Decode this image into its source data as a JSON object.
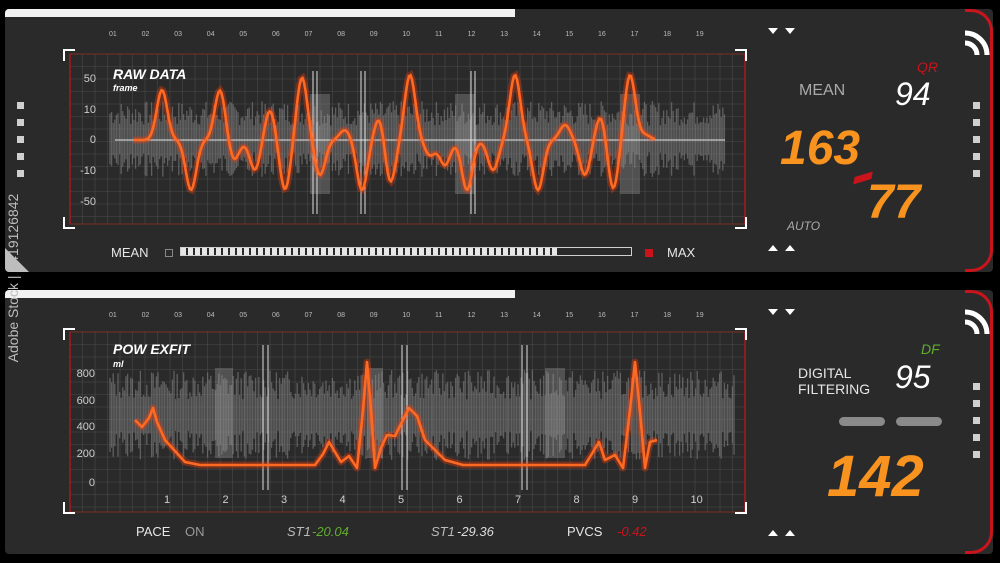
{
  "top_ticks": [
    "01",
    "02",
    "03",
    "04",
    "05",
    "06",
    "07",
    "08",
    "09",
    "10",
    "11",
    "12",
    "13",
    "14",
    "15",
    "16",
    "17",
    "18",
    "19"
  ],
  "panel1": {
    "title": "RAW DATA",
    "subtitle": "frame",
    "y_labels": [
      "50",
      "10",
      "0",
      "-10",
      "-50"
    ],
    "mean_label": "MEAN",
    "max_label": "MAX",
    "mean_bar_fill": 0.84,
    "right": {
      "mean_label": "MEAN",
      "qr_label": "QR",
      "qr_value": "94",
      "systolic": "163",
      "diastolic": "77",
      "auto_label": "AUTO"
    }
  },
  "panel2": {
    "title": "POW EXFIT",
    "subtitle": "ml",
    "y_labels": [
      "800",
      "600",
      "400",
      "200",
      "0"
    ],
    "x_labels": [
      "1",
      "2",
      "3",
      "4",
      "5",
      "6",
      "7",
      "8",
      "9",
      "10"
    ],
    "status": {
      "pace_label": "PACE",
      "pace_value": "ON",
      "st1a_label": "ST1",
      "st1a_value": "-20.04",
      "st1b_label": "ST1",
      "st1b_value": "-29.36",
      "pvcs_label": "PVCS",
      "pvcs_value": "-0.42"
    },
    "right": {
      "label_line1": "DIGITAL",
      "label_line2": "FILTERING",
      "df_label": "DF",
      "df_value": "95",
      "main_value": "142"
    }
  },
  "watermark_id": "Adobe Stock | #419126842",
  "colors": {
    "accent_orange": "#f7931e",
    "trace_orange": "#ff5a1a",
    "alert_red": "#c8141a",
    "ok_green": "#5fae2e",
    "panel_bg": "#2a2a2a"
  },
  "icons": [
    "expand-arrow-icon",
    "side-indicator-icon",
    "wifi-arc-icon"
  ]
}
